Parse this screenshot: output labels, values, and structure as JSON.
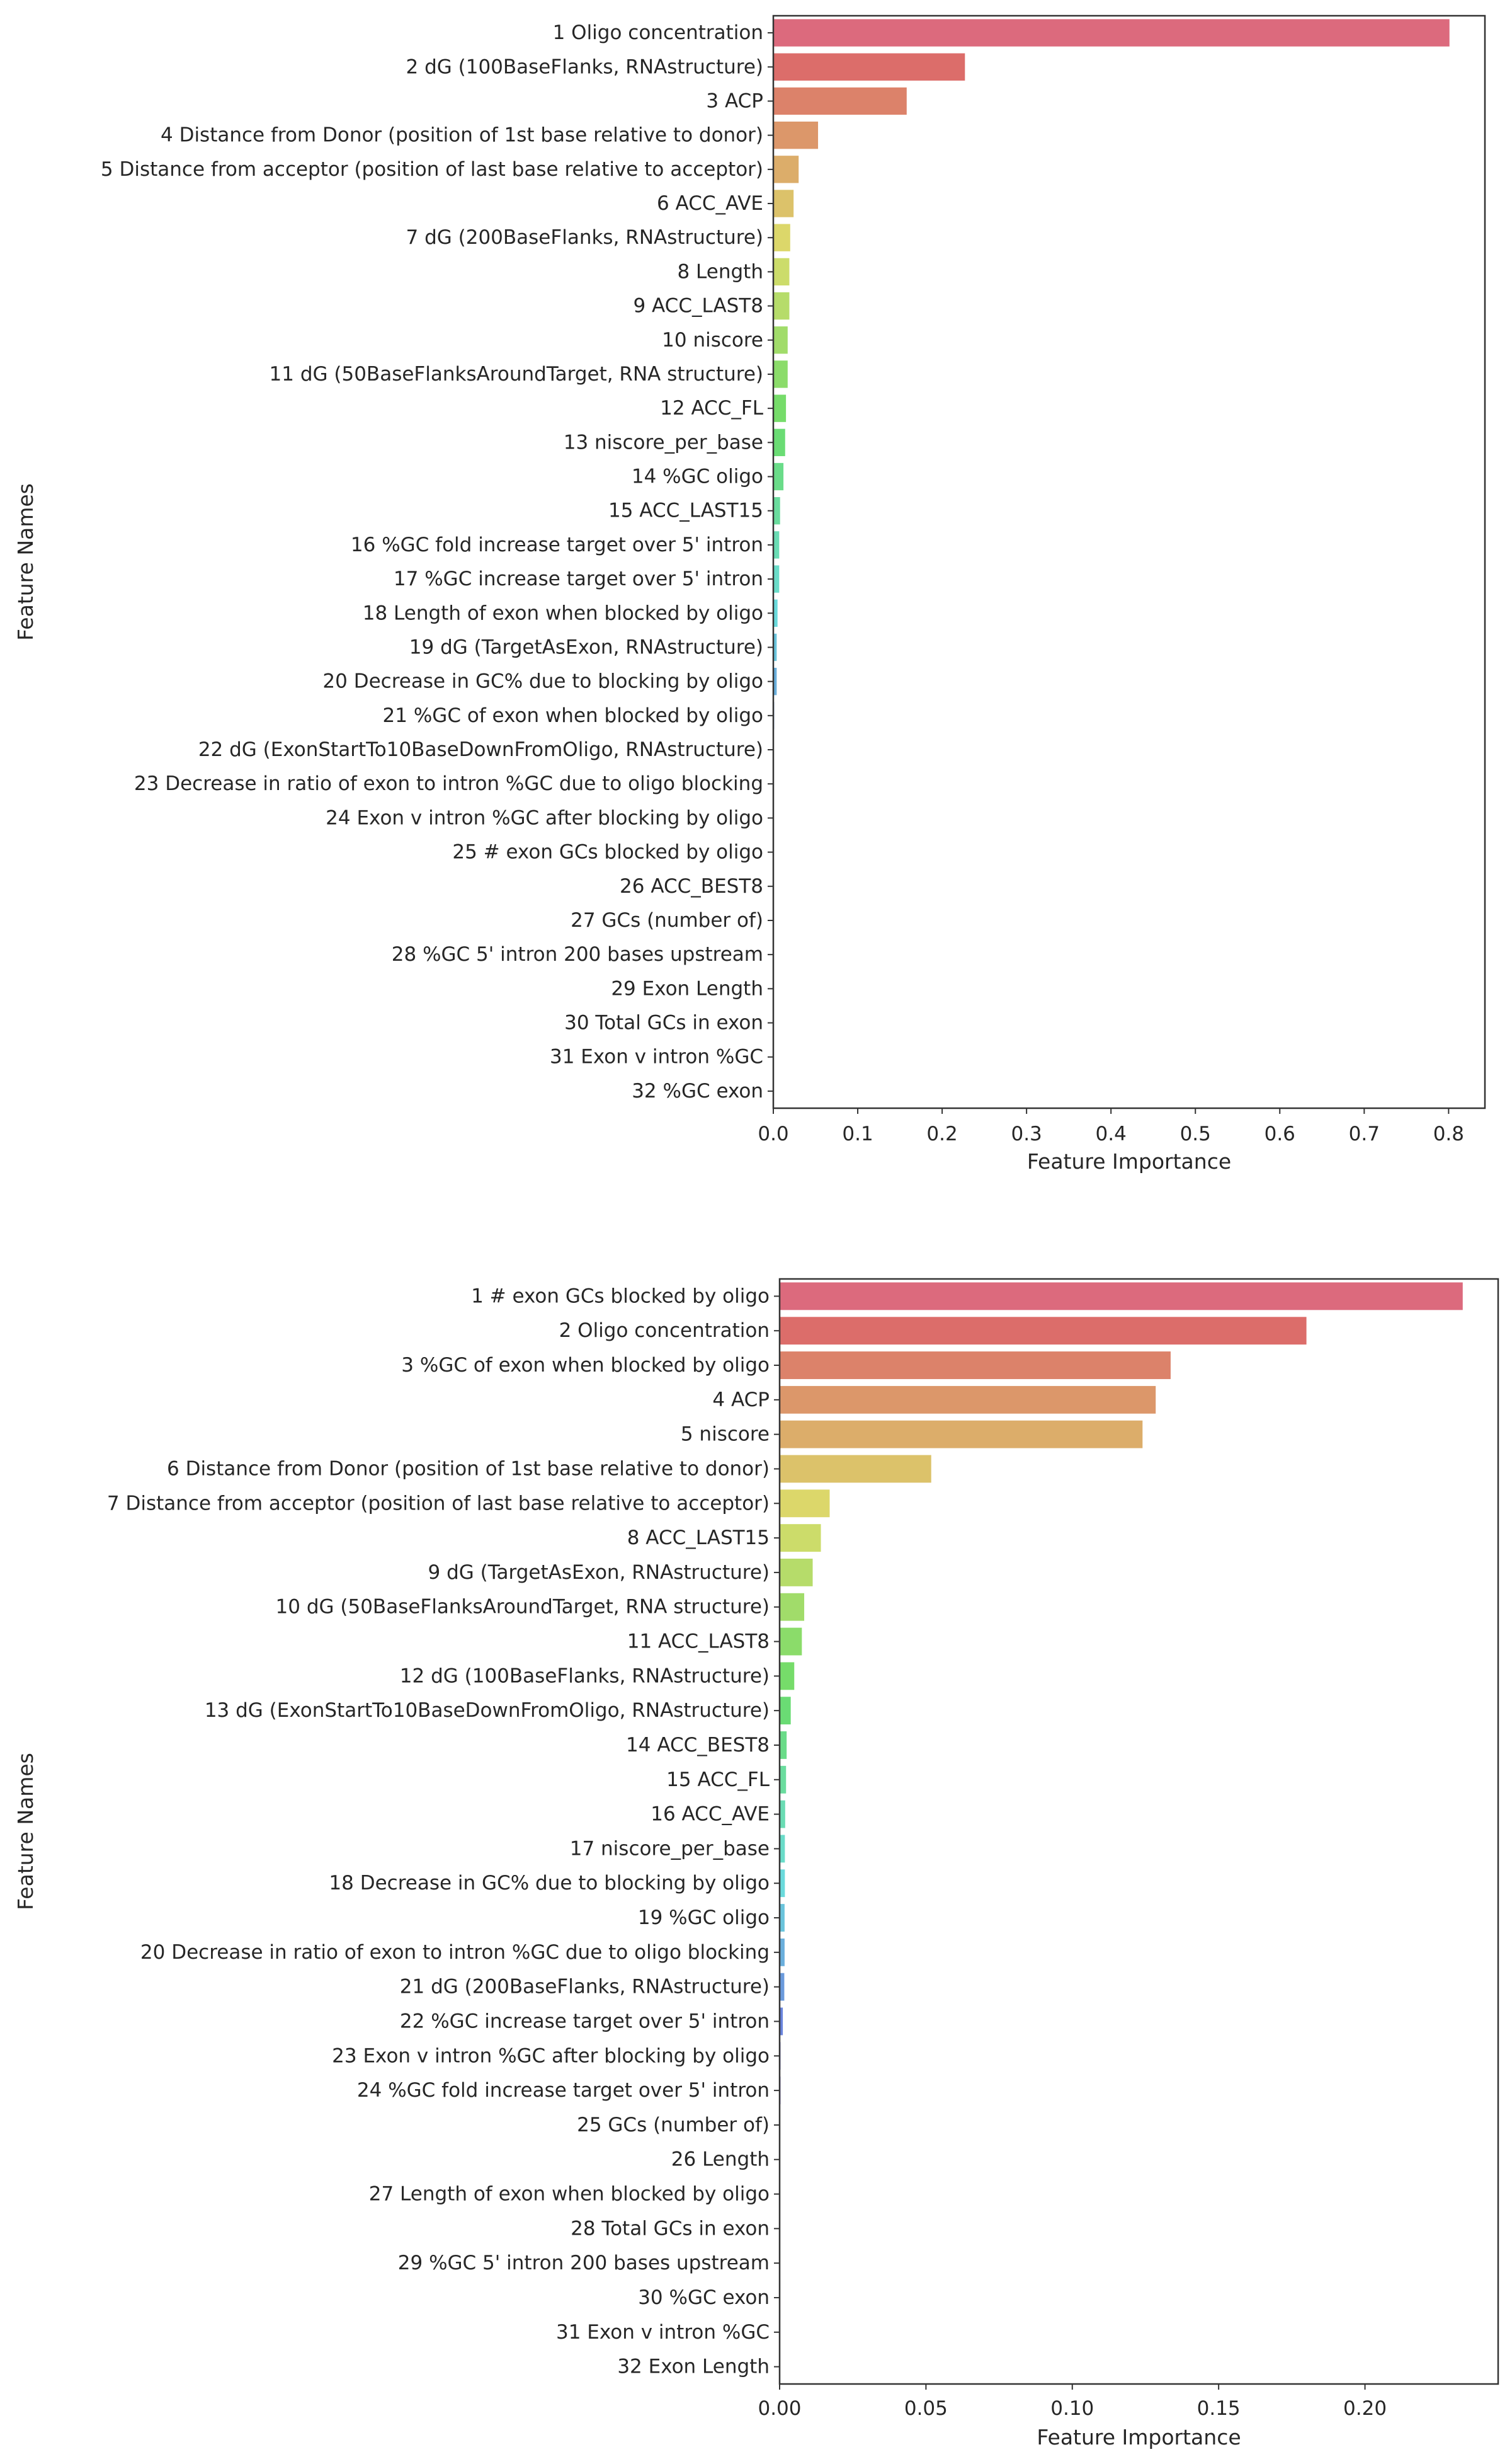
{
  "chart_data": [
    {
      "type": "bar",
      "orientation": "horizontal",
      "xlabel": "Feature Importance",
      "ylabel": "Feature Names",
      "xlim": [
        0,
        0.843
      ],
      "xticks": [
        "0.0",
        "0.1",
        "0.2",
        "0.3",
        "0.4",
        "0.5",
        "0.6",
        "0.7",
        "0.8"
      ],
      "xtick_values": [
        0,
        0.1,
        0.2,
        0.3,
        0.4,
        0.5,
        0.6,
        0.7,
        0.8
      ],
      "categories": [
        "1 Oligo concentration",
        "2 dG (100BaseFlanks, RNAstructure)",
        "3 ACP",
        "4 Distance from Donor (position of 1st base relative to donor)",
        "5 Distance from acceptor (position of last base relative to acceptor)",
        "6 ACC_AVE",
        "7 dG (200BaseFlanks, RNAstructure)",
        "8 Length",
        "9 ACC_LAST8",
        "10 niscore",
        "11 dG (50BaseFlanksAroundTarget, RNA structure)",
        "12 ACC_FL",
        "13 niscore_per_base",
        "14 %GC oligo",
        "15 ACC_LAST15",
        "16 %GC fold increase target over 5' intron",
        "17 %GC increase target over 5' intron",
        "18 Length of exon when blocked by oligo",
        "19 dG (TargetAsExon, RNAstructure)",
        "20 Decrease in GC% due to blocking by oligo",
        "21 %GC of exon when blocked by oligo",
        "22 dG (ExonStartTo10BaseDownFromOligo, RNAstructure)",
        "23 Decrease in ratio of exon to intron %GC due to oligo blocking",
        "24 Exon v intron %GC after blocking by oligo",
        "25 # exon GCs blocked by oligo",
        "26 ACC_BEST8",
        "27 GCs (number of)",
        "28 %GC 5' intron 200 bases upstream",
        "29 Exon Length",
        "30 Total GCs in exon",
        "31 Exon v intron %GC",
        "32 %GC exon"
      ],
      "values": [
        0.801,
        0.227,
        0.158,
        0.053,
        0.03,
        0.024,
        0.02,
        0.019,
        0.019,
        0.017,
        0.017,
        0.015,
        0.014,
        0.012,
        0.008,
        0.007,
        0.007,
        0.005,
        0.004,
        0.004,
        0.001,
        0.0005,
        0.0004,
        0.0003,
        0.0003,
        0.0002,
        0.0002,
        0.0001,
        0.0001,
        0.0001,
        0.0001,
        0.0001
      ]
    },
    {
      "type": "bar",
      "orientation": "horizontal",
      "xlabel": "Feature Importance",
      "ylabel": "Feature Names",
      "xlim": [
        0,
        0.2455
      ],
      "xticks": [
        "0.00",
        "0.05",
        "0.10",
        "0.15",
        "0.20"
      ],
      "xtick_values": [
        0,
        0.05,
        0.1,
        0.15,
        0.2
      ],
      "categories": [
        "1 # exon GCs blocked by oligo",
        "2 Oligo concentration",
        "3 %GC of exon when blocked by oligo",
        "4 ACP",
        "5 niscore",
        "6 Distance from Donor (position of 1st base relative to donor)",
        "7 Distance from acceptor (position of last base relative to acceptor)",
        "8 ACC_LAST15",
        "9 dG (TargetAsExon, RNAstructure)",
        "10 dG (50BaseFlanksAroundTarget, RNA structure)",
        "11 ACC_LAST8",
        "12 dG (100BaseFlanks, RNAstructure)",
        "13 dG (ExonStartTo10BaseDownFromOligo, RNAstructure)",
        "14 ACC_BEST8",
        "15 ACC_FL",
        "16 ACC_AVE",
        "17 niscore_per_base",
        "18 Decrease in GC% due to blocking by oligo",
        "19 %GC oligo",
        "20 Decrease in ratio of exon to intron %GC due to oligo blocking",
        "21 dG (200BaseFlanks, RNAstructure)",
        "22 %GC increase target over 5' intron",
        "23 Exon v intron %GC after blocking by oligo",
        "24 %GC fold increase target over 5' intron",
        "25 GCs (number of)",
        "26 Length",
        "27 Length of exon when blocked by oligo",
        "28 Total GCs in exon",
        "29 %GC 5' intron 200 bases upstream",
        "30 %GC exon",
        "31 Exon v intron %GC",
        "32 Exon Length"
      ],
      "values": [
        0.2334,
        0.18,
        0.1336,
        0.1285,
        0.124,
        0.0518,
        0.0171,
        0.0141,
        0.0113,
        0.0084,
        0.0076,
        0.005,
        0.0038,
        0.0024,
        0.0022,
        0.0019,
        0.0018,
        0.0018,
        0.0017,
        0.0017,
        0.0016,
        0.0011,
        0.0003,
        0.0003,
        0.0002,
        0.0002,
        0.0002,
        0.0001,
        0.0001,
        0.0001,
        0.0001,
        0.0001
      ]
    }
  ]
}
